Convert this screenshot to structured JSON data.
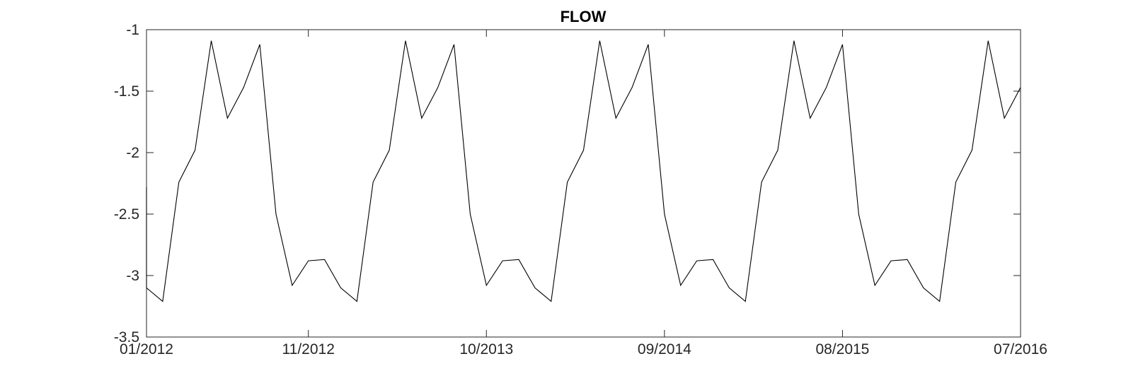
{
  "chart_data": {
    "type": "line",
    "title": "FLOW",
    "xlabel": "",
    "ylabel": "",
    "xlim": [
      "2012-01",
      "2016-07"
    ],
    "ylim": [
      -3.5,
      -1
    ],
    "xticks": [
      "01/2012",
      "11/2012",
      "10/2013",
      "09/2014",
      "08/2015",
      "07/2016"
    ],
    "xtick_dates": [
      "2012-01",
      "2012-11",
      "2013-10",
      "2014-09",
      "2015-08",
      "2016-07"
    ],
    "yticks": [
      -1,
      -1.5,
      -2,
      -2.5,
      -3,
      -3.5
    ],
    "ytick_labels": [
      "-1",
      "-1.5",
      "-2",
      "-2.5",
      "-3",
      "-3.5"
    ],
    "grid": false,
    "line_color": "#000000",
    "series": [
      {
        "start_spike": [
          -2.28,
          -3.09
        ],
        "x": [
          "2012-01",
          "2012-02",
          "2012-03",
          "2012-04",
          "2012-05",
          "2012-06",
          "2012-07",
          "2012-08",
          "2012-09",
          "2012-10",
          "2012-11",
          "2012-12",
          "2013-01",
          "2013-02",
          "2013-03",
          "2013-04",
          "2013-05",
          "2013-06",
          "2013-07",
          "2013-08",
          "2013-09",
          "2013-10",
          "2013-11",
          "2013-12",
          "2014-01",
          "2014-02",
          "2014-03",
          "2014-04",
          "2014-05",
          "2014-06",
          "2014-07",
          "2014-08",
          "2014-09",
          "2014-10",
          "2014-11",
          "2014-12",
          "2015-01",
          "2015-02",
          "2015-03",
          "2015-04",
          "2015-05",
          "2015-06",
          "2015-07",
          "2015-08",
          "2015-09",
          "2015-10",
          "2015-11",
          "2015-12",
          "2016-01",
          "2016-02",
          "2016-03",
          "2016-04",
          "2016-05",
          "2016-06",
          "2016-07"
        ],
        "values": [
          -3.1,
          -3.21,
          -2.24,
          -1.98,
          -1.09,
          -1.72,
          -1.47,
          -1.12,
          -2.5,
          -3.08,
          -2.88,
          -2.87,
          -3.1,
          -3.21,
          -2.24,
          -1.98,
          -1.09,
          -1.72,
          -1.47,
          -1.12,
          -2.5,
          -3.08,
          -2.88,
          -2.87,
          -3.1,
          -3.21,
          -2.24,
          -1.98,
          -1.09,
          -1.72,
          -1.47,
          -1.12,
          -2.5,
          -3.08,
          -2.88,
          -2.87,
          -3.1,
          -3.21,
          -2.24,
          -1.98,
          -1.09,
          -1.72,
          -1.47,
          -1.12,
          -2.5,
          -3.08,
          -2.88,
          -2.87,
          -3.1,
          -3.21,
          -2.24,
          -1.98,
          -1.09,
          -1.72,
          -1.47
        ]
      }
    ]
  }
}
